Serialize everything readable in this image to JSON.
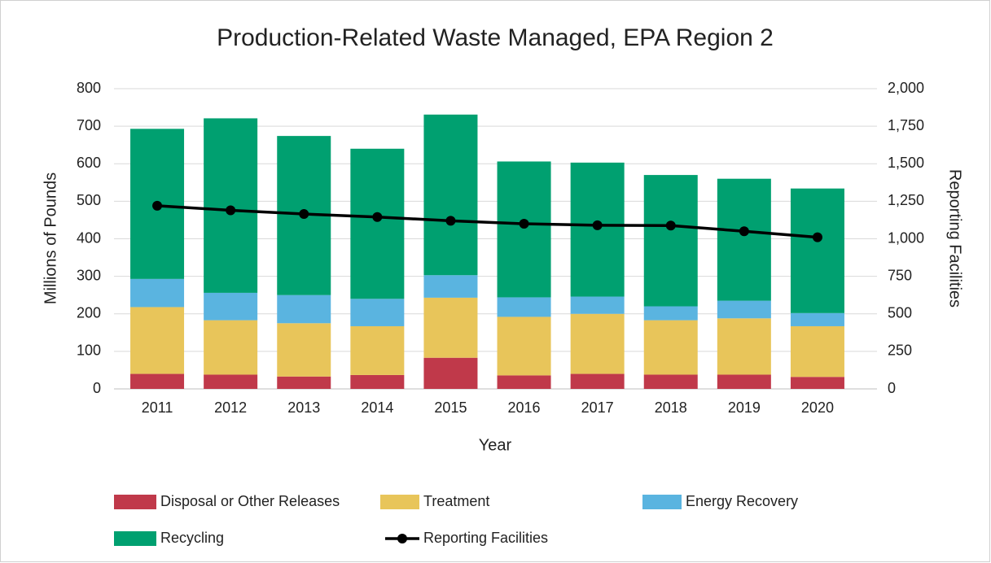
{
  "chart_data": {
    "type": "bar",
    "title": "Production-Related Waste Managed, EPA Region 2",
    "x_label": "Year",
    "y_label": "Millions of Pounds",
    "y2_label": "Reporting Facilities",
    "stacked": true,
    "categories": [
      "2011",
      "2012",
      "2013",
      "2014",
      "2015",
      "2016",
      "2017",
      "2018",
      "2019",
      "2020"
    ],
    "series": [
      {
        "name": "Disposal or Other Releases",
        "color": "#c0394a",
        "values": [
          40,
          38,
          33,
          37,
          83,
          36,
          40,
          38,
          38,
          32
        ]
      },
      {
        "name": "Treatment",
        "color": "#e8c55a",
        "values": [
          178,
          145,
          142,
          130,
          160,
          156,
          160,
          145,
          150,
          135
        ]
      },
      {
        "name": "Energy Recovery",
        "color": "#5ab4e0",
        "values": [
          75,
          73,
          75,
          73,
          60,
          52,
          46,
          37,
          47,
          35
        ]
      },
      {
        "name": "Recycling",
        "color": "#00a070",
        "values": [
          400,
          465,
          424,
          400,
          428,
          362,
          357,
          350,
          325,
          332
        ]
      },
      {
        "name": "Reporting Facilities",
        "color": "#000000",
        "type": "line",
        "axis": "y2",
        "values": [
          1220,
          1190,
          1165,
          1145,
          1120,
          1100,
          1090,
          1088,
          1050,
          1010
        ]
      }
    ],
    "ylim": [
      0,
      800
    ],
    "yticks": [
      0,
      100,
      200,
      300,
      400,
      500,
      600,
      700,
      800
    ],
    "y2lim": [
      0,
      2000
    ],
    "y2ticks": [
      0,
      250,
      500,
      750,
      {
        "value": 1000,
        "label": "1,000"
      },
      {
        "value": 1250,
        "label": "1,250"
      },
      {
        "value": 1500,
        "label": "1,500"
      },
      {
        "value": 1750,
        "label": "1,750"
      },
      {
        "value": 2000,
        "label": "2,000"
      }
    ],
    "grid": true,
    "legend": "bottom"
  }
}
